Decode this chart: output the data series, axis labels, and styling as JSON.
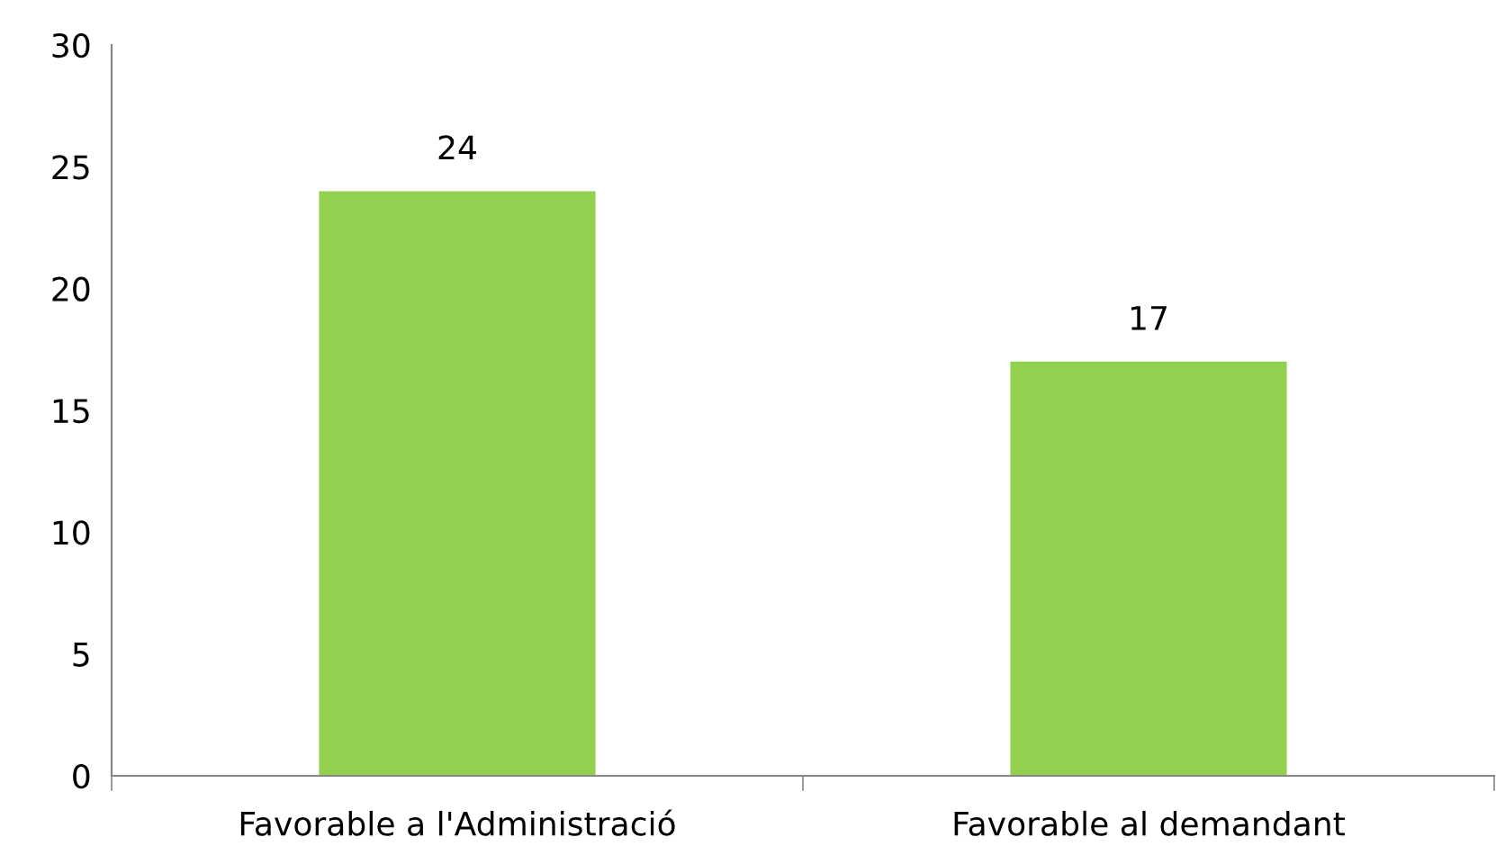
{
  "chart_data": {
    "type": "bar",
    "categories": [
      "Favorable a l'Administració",
      "Favorable al demandant"
    ],
    "values": [
      24,
      17
    ],
    "color": "#92d050",
    "ylim": [
      0,
      30
    ],
    "yticks": [
      0,
      5,
      10,
      15,
      20,
      25,
      30
    ],
    "data_labels": true,
    "grid": false,
    "legend": false
  }
}
